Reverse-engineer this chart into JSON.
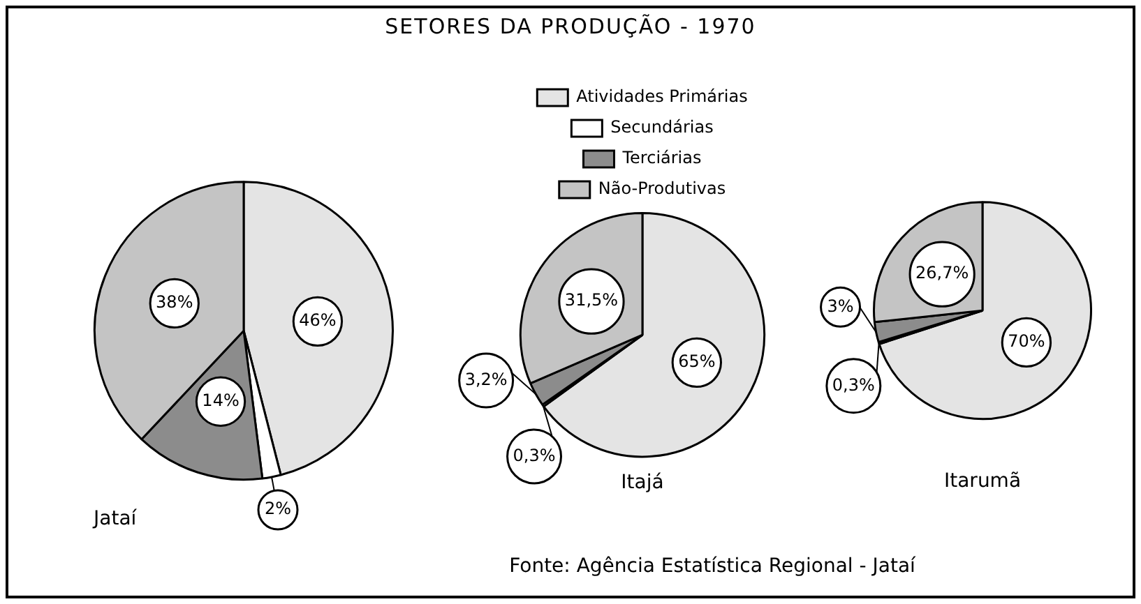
{
  "chart_data": [
    {
      "type": "other",
      "title": "SETORES DA PRODUÇÃO - 1970",
      "annotations": [
        "Fonte: Agência Estatística Regional - Jataí"
      ]
    },
    {
      "type": "pie",
      "title": "Jataí",
      "categories": [
        null,
        null,
        null,
        null
      ],
      "values": [
        46,
        2,
        14,
        38
      ],
      "colors": [
        "#e4e4e4",
        "#ffffff",
        "#8c8c8c",
        "#c4c4c4"
      ],
      "value_labels": [
        "46%",
        "2%",
        "14%",
        "38%"
      ]
    },
    {
      "type": "pie",
      "title": "Itajá",
      "categories": [
        "Atividades Primárias",
        "Secundárias",
        "Terciárias",
        "Não-Produtivas"
      ],
      "values": [
        65,
        0.3,
        3.2,
        31.5
      ],
      "colors": [
        "#e4e4e4",
        "#ffffff",
        "#8c8c8c",
        "#c4c4c4"
      ],
      "value_labels": [
        "65%",
        "0,3%",
        "3,2%",
        "31,5%"
      ],
      "legend": "top"
    },
    {
      "type": "pie",
      "title": "Itarumã",
      "categories": [
        null,
        null,
        null,
        null
      ],
      "values": [
        70,
        0.3,
        3,
        26.7
      ],
      "colors": [
        "#e4e4e4",
        "#ffffff",
        "#8c8c8c",
        "#c4c4c4"
      ],
      "value_labels": [
        "70%",
        "0,3%",
        "3%",
        "26,7%"
      ]
    }
  ]
}
